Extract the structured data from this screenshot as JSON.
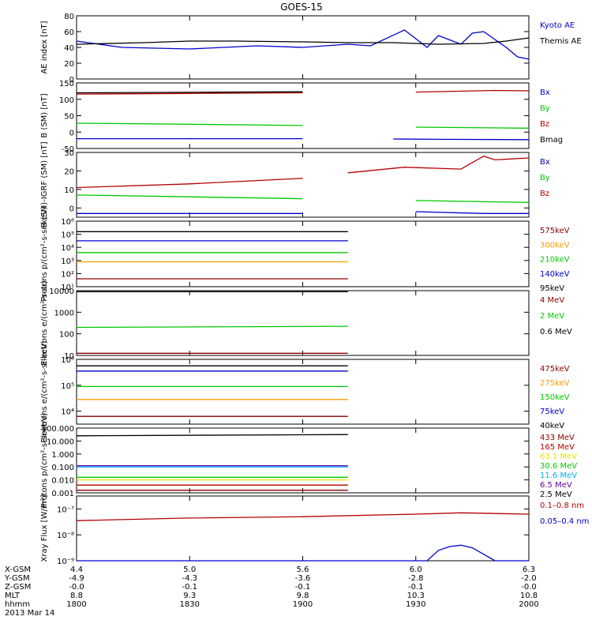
{
  "title": "GOES-15",
  "colors": {
    "black": "#000000",
    "blue": "#0000cc",
    "green": "#00c800",
    "red": "#b40000",
    "orange": "#ff9900",
    "cyan": "#00aaff",
    "yellow": "#e6e600",
    "magenta": "#a000a0",
    "purple": "#6600aa",
    "darkred": "#8b0000"
  },
  "time_axis": {
    "start": "18:00",
    "end": "20:00",
    "ticks": [
      "1800",
      "1830",
      "1900",
      "1930",
      "2000"
    ]
  },
  "footer": {
    "row_labels": [
      "X-GSM",
      "Y-GSM",
      "Z-GSM",
      "MLT",
      "hhmm",
      "2013 Mar 14"
    ],
    "columns": [
      [
        "4.4",
        "-4.9",
        "-0.0",
        "8.8",
        "1800"
      ],
      [
        "5.0",
        "-4.3",
        "-0.1",
        "9.3",
        "1830"
      ],
      [
        "5.6",
        "-3.6",
        "-0.1",
        "9.8",
        "1900"
      ],
      [
        "6.0",
        "-2.8",
        "-0.1",
        "10.3",
        "1930"
      ],
      [
        "6.3",
        "-2.0",
        "-0.0",
        "10.8",
        "2000"
      ]
    ]
  },
  "chart_data": [
    {
      "type": "line",
      "ylabel": "AE index [nT]",
      "ylim": [
        0,
        80
      ],
      "yticks": [
        "0",
        "20",
        "40",
        "60",
        "80"
      ],
      "legend": [
        {
          "text": "Kyoto AE",
          "color": "blue"
        },
        {
          "text": "Themis AE",
          "color": "black"
        }
      ],
      "series": [
        {
          "name": "Kyoto AE",
          "color": "blue",
          "x": [
            18.0,
            18.2,
            18.5,
            18.8,
            19.0,
            19.2,
            19.3,
            19.45,
            19.55,
            19.6,
            19.7,
            19.75,
            19.8,
            19.9,
            19.95,
            20.0
          ],
          "y": [
            48,
            40,
            38,
            42,
            40,
            44,
            42,
            62,
            40,
            55,
            44,
            58,
            60,
            40,
            28,
            25
          ]
        },
        {
          "name": "Themis AE",
          "color": "black",
          "x": [
            18.0,
            18.3,
            18.5,
            18.7,
            19.0,
            19.2,
            19.4,
            19.6,
            19.8,
            19.9,
            20.0
          ],
          "y": [
            44,
            46,
            48,
            48,
            47,
            46,
            46,
            44,
            45,
            48,
            52
          ]
        }
      ]
    },
    {
      "type": "line",
      "ylabel": "B (SM) [nT]",
      "ylim": [
        -50,
        150
      ],
      "yticks": [
        "-50",
        "0",
        "50",
        "100",
        "150"
      ],
      "legend": [
        {
          "text": "Bx",
          "color": "blue"
        },
        {
          "text": "By",
          "color": "green"
        },
        {
          "text": "Bz",
          "color": "red"
        },
        {
          "text": "Bmag",
          "color": "black"
        }
      ],
      "series": [
        {
          "name": "Bx",
          "color": "blue",
          "x": [
            18.0,
            19.0,
            19.1,
            19.4,
            19.6,
            20.0
          ],
          "y": [
            -20,
            -20,
            null,
            -21,
            -22,
            -23
          ]
        },
        {
          "name": "By",
          "color": "green",
          "x": [
            18.0,
            18.5,
            19.0,
            19.1,
            19.5,
            20.0
          ],
          "y": [
            27,
            24,
            20,
            null,
            15,
            12
          ]
        },
        {
          "name": "Bz",
          "color": "red",
          "x": [
            18.0,
            18.5,
            19.0,
            19.1,
            19.5,
            19.85,
            20.0
          ],
          "y": [
            116,
            118,
            120,
            null,
            122,
            127,
            126
          ]
        },
        {
          "name": "Bmag",
          "color": "black",
          "x": [
            18.0,
            19.0,
            19.1,
            20.0
          ],
          "y": [
            120,
            123,
            null,
            129
          ]
        }
      ]
    },
    {
      "type": "line",
      "ylabel": "B (SM)-IGRF (SM) [nT]",
      "ylim": [
        -5,
        30
      ],
      "yticks": [
        "0",
        "10",
        "20",
        "30"
      ],
      "legend": [
        {
          "text": "Bx",
          "color": "blue"
        },
        {
          "text": "By",
          "color": "green"
        },
        {
          "text": "Bz",
          "color": "red"
        }
      ],
      "series": [
        {
          "name": "Bx",
          "color": "blue",
          "x": [
            18.0,
            19.0,
            19.1,
            19.5,
            19.8,
            20.0
          ],
          "y": [
            -3,
            -3,
            null,
            -2,
            -3,
            -3
          ]
        },
        {
          "name": "By",
          "color": "green",
          "x": [
            18.0,
            18.5,
            19.0,
            19.1,
            19.5,
            20.0
          ],
          "y": [
            7,
            6,
            5,
            null,
            4,
            3
          ]
        },
        {
          "name": "Bz",
          "color": "red",
          "x": [
            18.0,
            18.5,
            19.0,
            19.1,
            19.2,
            19.45,
            19.7,
            19.8,
            19.85,
            20.0
          ],
          "y": [
            11,
            13,
            16,
            null,
            19,
            22,
            21,
            28,
            26,
            27
          ]
        }
      ]
    },
    {
      "type": "line",
      "ylabel": "Protons p/(cm²-s-sr-keV)",
      "ylog": true,
      "ylim": [
        1,
        6
      ],
      "yticks": [
        "10¹",
        "10²",
        "10³",
        "10⁴",
        "10⁵",
        "10⁶"
      ],
      "legend": [
        {
          "text": "575keV",
          "color": "darkred"
        },
        {
          "text": "300keV",
          "color": "orange"
        },
        {
          "text": "210keV",
          "color": "green"
        },
        {
          "text": "140keV",
          "color": "blue"
        },
        {
          "text": "95keV",
          "color": "black"
        }
      ],
      "series": [
        {
          "name": "95keV",
          "color": "black",
          "x": [
            18.0,
            19.2,
            19.3,
            20.0
          ],
          "y": [
            5.2,
            5.2,
            null,
            5.3
          ]
        },
        {
          "name": "140keV",
          "color": "blue",
          "x": [
            18.0,
            19.2,
            19.3,
            20.0
          ],
          "y": [
            4.5,
            4.5,
            null,
            4.6
          ]
        },
        {
          "name": "210keV",
          "color": "green",
          "x": [
            18.0,
            19.2,
            19.3,
            20.0
          ],
          "y": [
            3.6,
            3.6,
            null,
            3.7
          ]
        },
        {
          "name": "300keV",
          "color": "orange",
          "x": [
            18.0,
            19.2,
            19.3,
            20.0
          ],
          "y": [
            2.9,
            2.9,
            null,
            3.0
          ]
        },
        {
          "name": "575keV",
          "color": "darkred",
          "x": [
            18.0,
            19.2,
            19.3,
            20.0
          ],
          "y": [
            1.6,
            1.6,
            null,
            1.7
          ]
        }
      ]
    },
    {
      "type": "line",
      "ylabel": "Electrons e/(cm²-s-sr)",
      "ylog": true,
      "ylim": [
        1,
        4
      ],
      "yticks": [
        "10",
        "100",
        "1000",
        "10000"
      ],
      "legend": [
        {
          "text": "4 MeV",
          "color": "darkred"
        },
        {
          "text": "2 MeV",
          "color": "green"
        },
        {
          "text": "0.6 MeV",
          "color": "black"
        }
      ],
      "series": [
        {
          "name": "0.6 MeV",
          "color": "black",
          "x": [
            18.0,
            19.2,
            19.3,
            20.0
          ],
          "y": [
            3.95,
            3.95,
            null,
            3.98
          ]
        },
        {
          "name": "2 MeV",
          "color": "green",
          "x": [
            18.0,
            19.2,
            19.3,
            20.0
          ],
          "y": [
            2.3,
            2.35,
            null,
            2.45
          ]
        },
        {
          "name": "4 MeV",
          "color": "darkred",
          "x": [
            18.0,
            19.2,
            19.3,
            20.0
          ],
          "y": [
            1.1,
            1.1,
            null,
            1.1
          ]
        }
      ]
    },
    {
      "type": "line",
      "ylabel": "Electrons e/(cm²-s-sr-keV)",
      "ylog": true,
      "ylim": [
        3.5,
        6
      ],
      "yticks": [
        "10⁴",
        "10⁵",
        "10⁶"
      ],
      "legend": [
        {
          "text": "475keV",
          "color": "darkred"
        },
        {
          "text": "275keV",
          "color": "orange"
        },
        {
          "text": "150keV",
          "color": "green"
        },
        {
          "text": "75keV",
          "color": "blue"
        },
        {
          "text": "40keV",
          "color": "black"
        }
      ],
      "series": [
        {
          "name": "40keV",
          "color": "black",
          "x": [
            18.0,
            19.2,
            19.3,
            20.0
          ],
          "y": [
            5.75,
            5.75,
            null,
            5.78
          ]
        },
        {
          "name": "75keV",
          "color": "blue",
          "x": [
            18.0,
            19.2,
            19.3,
            20.0
          ],
          "y": [
            5.55,
            5.55,
            null,
            5.58
          ]
        },
        {
          "name": "150keV",
          "color": "green",
          "x": [
            18.0,
            19.2,
            19.3,
            20.0
          ],
          "y": [
            4.95,
            4.95,
            null,
            5.0
          ]
        },
        {
          "name": "275keV",
          "color": "orange",
          "x": [
            18.0,
            19.2,
            19.3,
            20.0
          ],
          "y": [
            4.45,
            4.45,
            null,
            4.5
          ]
        },
        {
          "name": "475keV",
          "color": "darkred",
          "x": [
            18.0,
            19.2,
            19.3,
            20.0
          ],
          "y": [
            3.8,
            3.8,
            null,
            3.82
          ]
        }
      ]
    },
    {
      "type": "line",
      "ylabel": "Protons p/(cm²-s-sr-keV)",
      "ylog": true,
      "ylim": [
        -3,
        2
      ],
      "yticks": [
        "0.001",
        "0.010",
        "0.100",
        "1.000",
        "10.000",
        "100.000"
      ],
      "legend": [
        {
          "text": "433 MeV",
          "color": "darkred"
        },
        {
          "text": "165 MeV",
          "color": "red"
        },
        {
          "text": "63.1 MeV",
          "color": "yellow"
        },
        {
          "text": "30.6 MeV",
          "color": "green"
        },
        {
          "text": "11.6 MeV",
          "color": "cyan"
        },
        {
          "text": "6.5 MeV",
          "color": "purple"
        },
        {
          "text": "2.5 MeV",
          "color": "black"
        }
      ],
      "series": [
        {
          "name": "2.5 MeV",
          "color": "black",
          "x": [
            18.0,
            19.2,
            19.3,
            20.0
          ],
          "y": [
            1.4,
            1.5,
            null,
            1.6
          ]
        },
        {
          "name": "6.5 MeV",
          "color": "purple",
          "x": [
            18.0,
            19.2,
            19.3,
            20.0
          ],
          "y": [
            -0.9,
            -0.9,
            null,
            -0.8
          ]
        },
        {
          "name": "11.6 MeV",
          "color": "cyan",
          "x": [
            18.0,
            19.2,
            19.3,
            20.0
          ],
          "y": [
            -1.0,
            -1.0,
            null,
            -1.0
          ]
        },
        {
          "name": "30.6 MeV",
          "color": "green",
          "x": [
            18.0,
            19.2,
            19.3,
            20.0
          ],
          "y": [
            -1.8,
            -1.8,
            null,
            -1.8
          ]
        },
        {
          "name": "63.1 MeV",
          "color": "yellow",
          "x": [
            18.0,
            19.2,
            19.3,
            20.0
          ],
          "y": [
            -2.0,
            -2.0,
            null,
            -2.0
          ]
        },
        {
          "name": "165 MeV",
          "color": "red",
          "x": [
            18.0,
            19.2,
            19.3,
            20.0
          ],
          "y": [
            -2.4,
            -2.4,
            null,
            -2.4
          ]
        },
        {
          "name": "433 MeV",
          "color": "darkred",
          "x": [
            18.0,
            19.2,
            19.3,
            20.0
          ],
          "y": [
            -2.8,
            -2.8,
            null,
            -2.8
          ]
        }
      ]
    },
    {
      "type": "line",
      "ylabel": "Xray Flux [W/m²]",
      "ylog": true,
      "ylim": [
        -9,
        -6.5
      ],
      "yticks": [
        "10⁻⁹",
        "10⁻⁸",
        "10⁻⁷"
      ],
      "legend": [
        {
          "text": "0.1–0.8 nm",
          "color": "red"
        },
        {
          "text": "0.05–0.4 nm",
          "color": "blue"
        }
      ],
      "series": [
        {
          "name": "0.1–0.8 nm",
          "color": "red",
          "x": [
            18.0,
            18.5,
            19.0,
            19.5,
            19.7,
            20.0
          ],
          "y": [
            -7.45,
            -7.35,
            -7.3,
            -7.2,
            -7.15,
            -7.2
          ]
        },
        {
          "name": "0.05–0.4 nm",
          "color": "blue",
          "x": [
            18.0,
            19.4,
            19.55,
            19.6,
            19.65,
            19.7,
            19.75,
            19.85,
            20.0
          ],
          "y": [
            -9.0,
            -9.0,
            -9.0,
            -8.6,
            -8.45,
            -8.4,
            -8.5,
            -9.0,
            -9.0
          ]
        }
      ]
    }
  ]
}
